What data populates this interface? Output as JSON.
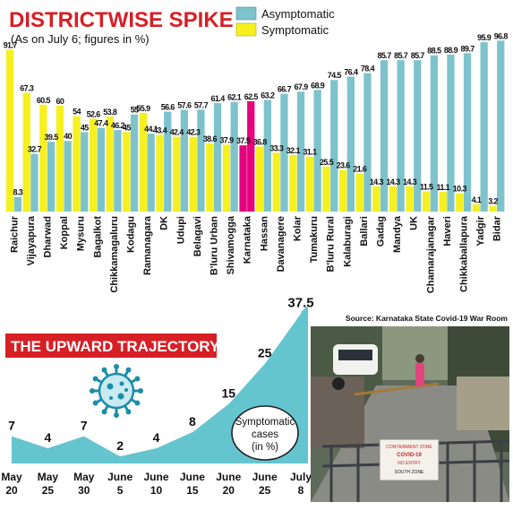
{
  "top_chart": {
    "title": "DISTRICTWISE SPIKE",
    "subtitle": "(As on July 6; figures in %)",
    "source": "Source: Karnataka State Covid-19 War Room"
  },
  "bottom_chart": {
    "title": "THE UPWARD TRAJECTORY",
    "annotation": [
      "Symptomatic",
      "cases",
      "(in %)"
    ]
  },
  "photo": {
    "sign_lines": [
      "CONTAINMENT ZONE",
      "COVID-19",
      "NO ENTRY",
      "SOUTH ZONE"
    ]
  },
  "colors": {
    "asymptomatic": "#7ec3cc",
    "symptomatic": "#f5f01e",
    "highlight": "#e5007d",
    "title_red": "#d71f26",
    "trajectory": "#64c5cf"
  },
  "chart_data": [
    {
      "type": "bar",
      "title": "DISTRICTWISE SPIKE",
      "subtitle": "(As on July 6; figures in %)",
      "categories": [
        "Raichur",
        "Vijayapura",
        "Dharwad",
        "Koppal",
        "Mysuru",
        "Bagalkot",
        "Chikkamagaluru",
        "Kodagu",
        "Ramanagara",
        "DK",
        "Udupi",
        "Belagavi",
        "B'luru Urban",
        "Shivamogga",
        "Karnataka",
        "Hassan",
        "Davanagere",
        "Kolar",
        "Tumakuru",
        "B'luru Rural",
        "Kalaburagi",
        "Ballari",
        "Gadag",
        "Mandya",
        "UK",
        "Chamarajanagar",
        "Haveri",
        "Chikkaballapura",
        "Yadgir",
        "Bidar"
      ],
      "highlight_category": "Karnataka",
      "series": [
        {
          "name": "Asymptomatic",
          "values": [
            8.3,
            32.7,
            39.5,
            40,
            45,
            47.4,
            46.2,
            55,
            44.1,
            56.6,
            57.6,
            57.7,
            61.4,
            62.1,
            62.5,
            63.2,
            66.7,
            67.9,
            68.9,
            74.5,
            76.4,
            78.4,
            85.7,
            85.7,
            85.7,
            88.5,
            88.9,
            89.7,
            95.9,
            96.8
          ]
        },
        {
          "name": "Symptomatic",
          "values": [
            91.7,
            67.3,
            60.5,
            60,
            54,
            52.6,
            53.8,
            45,
            55.9,
            43.4,
            42.4,
            42.3,
            38.6,
            37.9,
            37.5,
            36.8,
            33.3,
            32.1,
            31.1,
            25.5,
            23.6,
            21.6,
            14.3,
            14.3,
            14.3,
            11.5,
            11.1,
            10.3,
            4.1,
            3.2
          ]
        }
      ],
      "value_labels": {
        "Asymptomatic": [
          "8.3",
          "32.7",
          "39.5",
          "40",
          "45",
          "47.4",
          "46.2",
          "55",
          "44.1",
          "56.6",
          "57.6",
          "57.7",
          "61.4",
          "62.1",
          "62.5",
          "63.2",
          "66.7",
          "67.9",
          "68.9",
          "74.5",
          "76.4",
          "78.4",
          "85.7",
          "85.7",
          "85.7",
          "88.5",
          "88.9",
          "89.7",
          "95.9",
          "96.8"
        ],
        "Symptomatic": [
          "91.7",
          "67.3",
          "60.5",
          "60",
          "54",
          "52.6",
          "53.8",
          "45",
          "55.9",
          "43.4",
          "42.4",
          "42.3",
          "38.6",
          "37.9",
          "37.5",
          "36.8",
          "33.3",
          "32.1",
          "31.1",
          "25.5",
          "23.6",
          "21.6",
          "14.3",
          "14.3",
          "14.3",
          "11.5",
          "11.1",
          "10.3",
          "4.1",
          "3.2"
        ]
      },
      "ylim": [
        0,
        100
      ],
      "grid": false,
      "legend": "top-right"
    },
    {
      "type": "area",
      "title": "THE UPWARD TRAJECTORY",
      "x": [
        [
          "May",
          "20"
        ],
        [
          "May",
          "25"
        ],
        [
          "May",
          "30"
        ],
        [
          "June",
          "5"
        ],
        [
          "June",
          "10"
        ],
        [
          "June",
          "15"
        ],
        [
          "June",
          "20"
        ],
        [
          "June",
          "25"
        ],
        [
          "July",
          "8"
        ]
      ],
      "values": [
        7,
        4,
        7,
        2,
        4,
        8,
        15,
        25,
        37.5
      ],
      "value_labels": [
        "7",
        "4",
        "7",
        "2",
        "4",
        "8",
        "15",
        "25",
        "37.5"
      ],
      "ylabel": "Symptomatic cases (in %)",
      "ylim": [
        0,
        40
      ]
    }
  ]
}
